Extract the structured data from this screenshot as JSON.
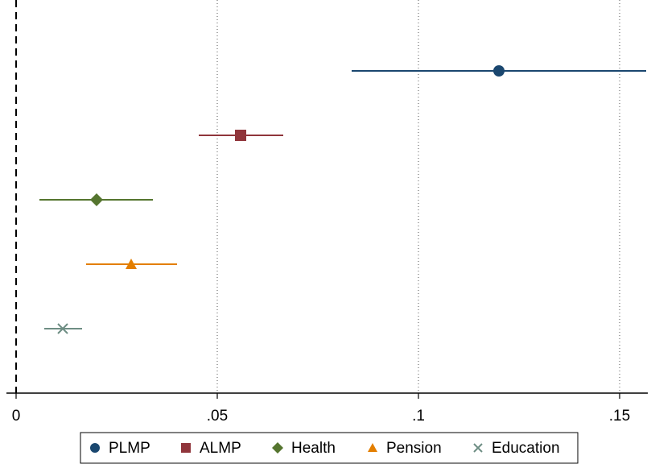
{
  "chart_data": {
    "type": "coefplot",
    "xlim": [
      -0.0024,
      0.157
    ],
    "xticks": [
      0,
      {
        "value": 0.05,
        "label": ".05"
      },
      {
        "value": 0.1,
        "label": ".1"
      },
      {
        "value": 0.15,
        "label": ".15"
      }
    ],
    "grid": true,
    "reference_line": 0,
    "series": [
      {
        "name": "PLMP",
        "color": "#1a476f",
        "marker": "circle",
        "values": [
          0.12
        ],
        "lower": [
          0.0834
        ],
        "upper": [
          0.1566
        ]
      },
      {
        "name": "ALMP",
        "color": "#90353b",
        "marker": "square",
        "values": [
          0.0558
        ],
        "lower": [
          0.0454
        ],
        "upper": [
          0.0664
        ]
      },
      {
        "name": "Health",
        "color": "#55752f",
        "marker": "diamond",
        "values": [
          0.02
        ],
        "lower": [
          0.0058
        ],
        "upper": [
          0.034
        ]
      },
      {
        "name": "Pension",
        "color": "#e37e00",
        "marker": "triangle",
        "values": [
          0.0286
        ],
        "lower": [
          0.0174
        ],
        "upper": [
          0.04
        ]
      },
      {
        "name": "Education",
        "color": "#6e8e84",
        "marker": "x",
        "values": [
          0.0116
        ],
        "lower": [
          0.007
        ],
        "upper": [
          0.0164
        ]
      }
    ]
  }
}
